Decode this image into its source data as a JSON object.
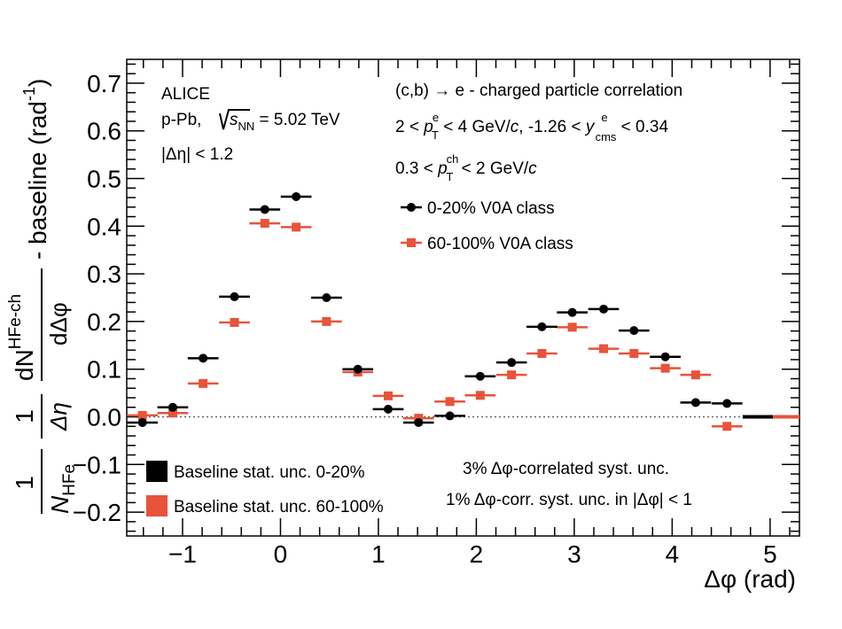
{
  "chart_data": {
    "type": "scatter",
    "xlabel": "Δφ (rad)",
    "ylabel": {
      "frac1_num": "1",
      "frac1_den_main": "N",
      "frac1_den_sub": "HFe",
      "frac2_num": "1",
      "frac2_den": "Δη",
      "frac3_num_main": "dN",
      "frac3_num_sup": "HFe-ch",
      "frac3_den": "dΔφ",
      "suffix": "- baseline (rad",
      "suffix_sup": "-1",
      "suffix_close": ")"
    },
    "xlim": [
      -1.57,
      5.3
    ],
    "ylim": [
      -0.25,
      0.75
    ],
    "x_ticks": [
      -1,
      0,
      1,
      2,
      3,
      4,
      5
    ],
    "x_tick_labels": [
      "−1",
      "0",
      "1",
      "2",
      "3",
      "4",
      "5"
    ],
    "y_ticks": [
      -0.2,
      -0.1,
      0.0,
      0.1,
      0.2,
      0.3,
      0.4,
      0.5,
      0.6,
      0.7
    ],
    "y_tick_labels": [
      "−0.2",
      "−0.1",
      "0.0",
      "0.1",
      "0.2",
      "0.3",
      "0.4",
      "0.5",
      "0.6",
      "0.7"
    ],
    "bin_half_width": 0.157,
    "series": [
      {
        "name": "0-20% V0A class",
        "color": "#000000",
        "marker": "circle",
        "x": [
          -1.41,
          -1.1,
          -0.79,
          -0.47,
          -0.16,
          0.16,
          0.47,
          0.79,
          1.1,
          1.41,
          1.73,
          2.04,
          2.36,
          2.67,
          2.98,
          3.3,
          3.61,
          3.93,
          4.24,
          4.56
        ],
        "y": [
          -0.012,
          0.02,
          0.123,
          0.252,
          0.435,
          0.462,
          0.25,
          0.1,
          0.016,
          -0.012,
          0.002,
          0.085,
          0.114,
          0.189,
          0.219,
          0.226,
          0.181,
          0.126,
          0.03,
          0.028
        ]
      },
      {
        "name": "60-100% V0A class",
        "color": "#e8533a",
        "marker": "square",
        "x": [
          -1.41,
          -1.1,
          -0.79,
          -0.47,
          -0.16,
          0.16,
          0.47,
          0.79,
          1.1,
          1.41,
          1.73,
          2.04,
          2.36,
          2.67,
          2.98,
          3.3,
          3.61,
          3.93,
          4.24,
          4.56
        ],
        "y": [
          0.003,
          0.008,
          0.07,
          0.198,
          0.406,
          0.398,
          0.2,
          0.094,
          0.044,
          -0.003,
          0.032,
          0.045,
          0.088,
          0.133,
          0.188,
          0.143,
          0.133,
          0.102,
          0.088,
          -0.02
        ]
      }
    ],
    "baseline_bands": [
      {
        "name": "Baseline stat. unc. 0-20%",
        "color": "#000000",
        "x_start": 4.72,
        "x_end": 5.03,
        "y": 0.0
      },
      {
        "name": "Baseline stat. unc. 60-100%",
        "color": "#e8533a",
        "x_start": 5.03,
        "x_end": 5.3,
        "y": 0.0
      }
    ],
    "annotations": {
      "alice": "ALICE",
      "system_prefix": "p-Pb, ",
      "sqrt_sub": "NN",
      "system_suffix": " = 5.02 TeV",
      "eta_cut": "|Δη| < 1.2",
      "title": "(c,b) → e - charged particle correlation",
      "pt_e_prefix": "2 < ",
      "pt_e_suffix": " < 4 GeV/",
      "c_sym": "c",
      "y_range_prefix": ", -1.26 < ",
      "y_range_suffix": " < 0.34",
      "pt_ch_prefix": "0.3 < ",
      "pt_ch_suffix": " < 2 GeV/",
      "p_sym": "p",
      "T_sub": "T",
      "e_sup": "e",
      "y_sym": "y",
      "cms_sub": "cms",
      "ch_sup": "ch",
      "syst1": "3% Δφ-correlated syst. unc.",
      "syst2": "1% Δφ-corr. syst. unc. in |Δφ| < 1"
    }
  }
}
